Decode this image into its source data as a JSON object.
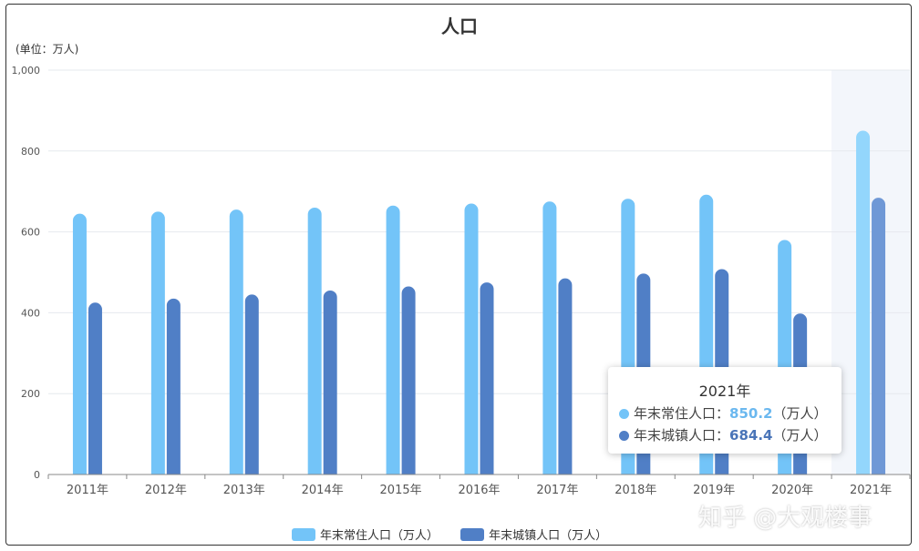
{
  "chart_data": {
    "type": "bar",
    "title": "人口",
    "unit_label": "(单位：万人)",
    "categories": [
      "2011年",
      "2012年",
      "2013年",
      "2014年",
      "2015年",
      "2016年",
      "2017年",
      "2018年",
      "2019年",
      "2020年",
      "2021年"
    ],
    "series": [
      {
        "name": "年末常住人口（万人）",
        "color": "#73c4f8",
        "highlight_color": "#93d6fc",
        "values": [
          645,
          650,
          655,
          660,
          665,
          670,
          675,
          682,
          692,
          580,
          850.2
        ]
      },
      {
        "name": "年末城镇人口（万人）",
        "color": "#507fc6",
        "highlight_color": "#6f98d6",
        "values": [
          425,
          435,
          445,
          455,
          465,
          475,
          485,
          497,
          508,
          398,
          684.4
        ]
      }
    ],
    "y_ticks": [
      "0",
      "200",
      "400",
      "600",
      "800",
      "1,000"
    ],
    "ylim": [
      0,
      1000
    ],
    "grid": true,
    "legend_position": "bottom",
    "highlighted_category": "2021年"
  },
  "tooltip": {
    "title": "2021年",
    "rows": [
      {
        "label": "年末常住人口：",
        "value": "850.2",
        "unit": "（万人）",
        "color": "#73c4f8"
      },
      {
        "label": "年末城镇人口：",
        "value": "684.4",
        "unit": "（万人）",
        "color": "#507fc6"
      }
    ]
  },
  "watermark": "知乎 @大观楼事"
}
